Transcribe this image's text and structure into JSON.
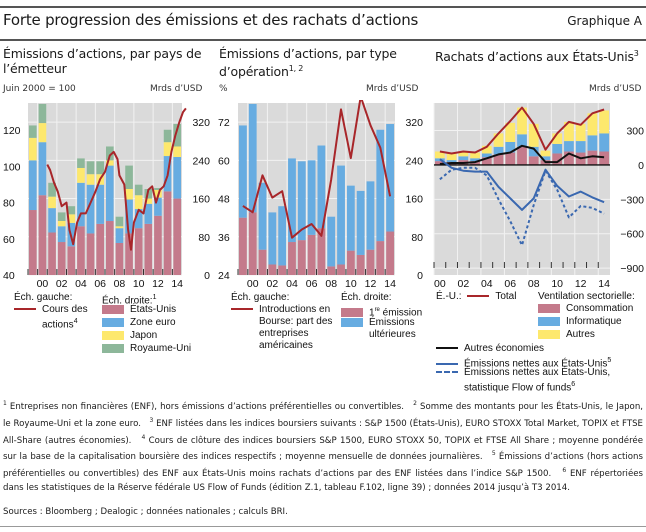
{
  "header": {
    "title": "Forte progression des émissions et des rachats d’actions",
    "label": "Graphique A"
  },
  "colors": {
    "pink": "#c47a8b",
    "blue": "#67ace1",
    "yellow": "#fde86d",
    "green": "#8db79a",
    "red": "#a8262a",
    "navy": "#3a68b0",
    "black": "#111111",
    "plot_bg": "#dadada",
    "grid": "#f2f2f2"
  },
  "panels": [
    {
      "title": "Émissions d’actions, par pays de l’émetteur",
      "sup": "",
      "unit_left": "Juin 2000 = 100",
      "unit_right": "Mrds d’USD"
    },
    {
      "title": "Émissions d’actions, par type d’opération",
      "sup": "1, 2",
      "unit_left": "%",
      "unit_right": "Mrds d’USD"
    },
    {
      "title": "Rachats d’actions aux États-Unis",
      "sup": "3",
      "unit_left": "",
      "unit_right": "Mrds d’USD"
    }
  ],
  "legends": {
    "p1": {
      "left_head": "Éch. gauche:",
      "line": "Cours des",
      "line2": "actions",
      "line_sup": "4",
      "right_head": "Éch. droite:",
      "right_sup": "1",
      "items": [
        "États-Unis",
        "Zone euro",
        "Japon",
        "Royaume-Uni"
      ]
    },
    "p2": {
      "left_head": "Éch. gauche:",
      "line_lines": [
        "Introductions en",
        "Bourse: part des",
        "entreprises",
        "américaines"
      ],
      "right_head": "Éch. droite:",
      "item1_sup": "re",
      "item1_pre": "1",
      "item1": " émission",
      "item2_lines": [
        "Émissions",
        "ultérieures"
      ]
    },
    "p3": {
      "us_label": "É.-U.:",
      "total": "Total",
      "sector_head": "Ventilation sectorielle:",
      "sectors": [
        "Consommation",
        "Informatique",
        "Autres"
      ],
      "other": "Autres économies",
      "net": "Émissions nettes aux États-Unis",
      "net_sup": "5",
      "fof1": "Émissions nettes aux États-Unis,",
      "fof2": "statistique Flow of funds",
      "fof_sup": "6"
    }
  },
  "footnotes": [
    {
      "n": "1",
      "t": "Entreprises non financières (ENF), hors émissions d’actions préférentielles ou convertibles."
    },
    {
      "n": "2",
      "t": "Somme des montants pour les États-Unis, le Japon, le Royaume-Uni et la zone euro."
    },
    {
      "n": "3",
      "t": "ENF listées dans les indices boursiers suivants : S&P 1500 (États-Unis), EURO STOXX Total Market, TOPIX et FTSE All-Share (autres économies)."
    },
    {
      "n": "4",
      "t": "Cours de clôture des indices boursiers S&P 1500, EURO STOXX 50, TOPIX et FTSE All Share ; moyenne pondérée sur la base de la capitalisation boursière des indices respectifs ; moyenne mensuelle de données journalières."
    },
    {
      "n": "5",
      "t": "Émissions d’actions (hors actions préférentielles ou convertibles) des ENF aux États-Unis moins rachats d’actions par des ENF listées dans l’indice S&P 1500."
    },
    {
      "n": "6",
      "t": "ENF répertoriées dans les statistiques de la Réserve fédérale US Flow of Funds (édition Z.1, tableau F.102, ligne 39) ; données 2014 jusqu’à T3 2014."
    }
  ],
  "sources": "Sources : Bloomberg ; Dealogic ; données nationales ; calculs BRI.",
  "chart_data": [
    {
      "type": "bar",
      "stacked": true,
      "title": "Émissions d’actions, par pays de l’émetteur",
      "categories": [
        "1999",
        "2000",
        "2001",
        "2002",
        "2003",
        "2004",
        "2005",
        "2006",
        "2007",
        "2008",
        "2009",
        "2010",
        "2011",
        "2012",
        "2013",
        "2014"
      ],
      "xtick_labels": [
        "00",
        "02",
        "04",
        "06",
        "08",
        "10",
        "12",
        "14"
      ],
      "right_axis": {
        "label": "Mrds d’USD",
        "ylim": [
          0,
          360
        ],
        "ticks": [
          0,
          80,
          160,
          240,
          320
        ]
      },
      "left_axis": {
        "label": "Juin 2000 = 100",
        "ylim": [
          40,
          135
        ],
        "ticks": [
          40,
          60,
          80,
          100,
          120
        ]
      },
      "series": [
        {
          "name": "États-Unis",
          "axis": "right",
          "color": "pink",
          "values": [
            136,
            167,
            89,
            69,
            60,
            102,
            87,
            107,
            113,
            67,
            87,
            98,
            107,
            124,
            175,
            160
          ]
        },
        {
          "name": "Zone euro",
          "axis": "right",
          "color": "blue",
          "values": [
            104,
            111,
            51,
            33,
            49,
            91,
            102,
            82,
            116,
            31,
            71,
            40,
            42,
            38,
            74,
            87
          ]
        },
        {
          "name": "Japon",
          "axis": "right",
          "color": "yellow",
          "values": [
            47,
            40,
            24,
            11,
            18,
            31,
            22,
            22,
            11,
            4,
            22,
            29,
            11,
            16,
            29,
            22
          ]
        },
        {
          "name": "Royaume-Uni",
          "axis": "right",
          "color": "green",
          "values": [
            26,
            40,
            29,
            18,
            17,
            20,
            27,
            27,
            29,
            20,
            49,
            22,
            20,
            4,
            26,
            47
          ]
        }
      ],
      "line": {
        "name": "Cours des actions",
        "axis": "left",
        "color": "red",
        "x": [
          2000.5,
          2000.8,
          2001.2,
          2001.6,
          2002.0,
          2002.5,
          2002.8,
          2003.2,
          2003.6,
          2004.0,
          2004.5,
          2005.0,
          2005.5,
          2006.0,
          2006.5,
          2007.0,
          2007.4,
          2007.8,
          2008.0,
          2008.5,
          2008.9,
          2009.2,
          2009.5,
          2010.0,
          2010.5,
          2011.0,
          2011.4,
          2011.8,
          2012.2,
          2012.6,
          2013.0,
          2013.4,
          2013.8,
          2014.2,
          2014.6,
          2014.9
        ],
        "y": [
          101,
          98,
          91,
          86,
          78,
          80,
          65,
          57,
          69,
          74,
          74,
          80,
          86,
          93,
          97,
          106,
          108,
          104,
          95,
          90,
          65,
          54,
          69,
          76,
          74,
          87,
          89,
          80,
          87,
          89,
          95,
          108,
          117,
          124,
          130,
          132
        ]
      }
    },
    {
      "type": "bar",
      "stacked": true,
      "title": "Émissions d’actions, par type d’opération",
      "categories": [
        "1999",
        "2000",
        "2001",
        "2002",
        "2003",
        "2004",
        "2005",
        "2006",
        "2007",
        "2008",
        "2009",
        "2010",
        "2011",
        "2012",
        "2013",
        "2014"
      ],
      "xtick_labels": [
        "00",
        "02",
        "04",
        "06",
        "08",
        "10",
        "12",
        "14"
      ],
      "right_axis": {
        "label": "Mrds d’USD",
        "ylim": [
          0,
          360
        ],
        "ticks": [
          0,
          80,
          160,
          240,
          320
        ]
      },
      "left_axis": {
        "label": "%",
        "ylim": [
          24,
          78
        ],
        "ticks": [
          24,
          36,
          48,
          60,
          72
        ]
      },
      "series": [
        {
          "name": "1re émission",
          "axis": "right",
          "color": "pink",
          "values": [
            120,
            131,
            53,
            22,
            20,
            69,
            73,
            84,
            98,
            18,
            22,
            51,
            42,
            53,
            71,
            91
          ]
        },
        {
          "name": "Émissions ultérieures",
          "axis": "right",
          "color": "blue",
          "values": [
            193,
            227,
            140,
            109,
            124,
            175,
            165,
            156,
            173,
            104,
            207,
            136,
            134,
            143,
            233,
            225
          ]
        }
      ],
      "line": {
        "name": "Introductions en Bourse: part des entreprises américaines",
        "axis": "left",
        "color": "red",
        "x": [
          1999,
          2000,
          2001,
          2002,
          2003,
          2004,
          2005,
          2006,
          2007,
          2008,
          2009,
          2010,
          2011,
          2012,
          2013,
          2014
        ],
        "y": [
          45.7,
          43.7,
          55.3,
          48.3,
          50.3,
          35.7,
          38.3,
          40.0,
          36.3,
          54.0,
          76.0,
          60.7,
          80.0,
          71.0,
          64.0,
          48.7
        ]
      }
    },
    {
      "type": "bar",
      "stacked": true,
      "title": "Rachats d’actions aux États-Unis",
      "categories": [
        "2000",
        "2001",
        "2002",
        "2003",
        "2004",
        "2005",
        "2006",
        "2007",
        "2008",
        "2009",
        "2010",
        "2011",
        "2012",
        "2013",
        "2014"
      ],
      "xtick_labels": [
        "00",
        "02",
        "04",
        "06",
        "08",
        "10",
        "12",
        "14"
      ],
      "right_axis": {
        "label": "Mrds d’USD",
        "ylim": [
          -960,
          540
        ],
        "ticks": [
          -900,
          -600,
          -300,
          0,
          300
        ]
      },
      "series": [
        {
          "name": "Consommation",
          "color": "pink",
          "values": [
            33,
            25,
            42,
            33,
            67,
            92,
            108,
            158,
            75,
            42,
            100,
            117,
            108,
            125,
            117
          ]
        },
        {
          "name": "Informatique",
          "color": "blue",
          "values": [
            25,
            17,
            33,
            25,
            33,
            66,
            92,
            109,
            83,
            33,
            83,
            91,
            100,
            133,
            158
          ]
        },
        {
          "name": "Autres",
          "color": "yellow",
          "values": [
            59,
            66,
            42,
            50,
            67,
            117,
            167,
            233,
            200,
            50,
            92,
            167,
            150,
            192,
            200
          ]
        }
      ],
      "lines": [
        {
          "name": "Total",
          "color": "red",
          "style": "solid",
          "values": [
            117,
            100,
            117,
            108,
            158,
            275,
            383,
            500,
            358,
            133,
            275,
            375,
            350,
            450,
            483
          ]
        },
        {
          "name": "Autres économies",
          "color": "black",
          "style": "solid",
          "values": [
            8,
            17,
            17,
            25,
            58,
            92,
            108,
            167,
            142,
            25,
            25,
            100,
            58,
            75,
            67
          ]
        },
        {
          "name": "Émissions nettes aux États-Unis",
          "color": "navy",
          "style": "solid",
          "values": [
            50,
            -25,
            -50,
            -58,
            -58,
            -192,
            -292,
            -392,
            -292,
            -42,
            -183,
            -275,
            -233,
            -283,
            -325
          ]
        },
        {
          "name": "Émissions nettes aux États-Unis, statistique Flow of funds",
          "color": "navy",
          "style": "dashed",
          "values": [
            -125,
            -42,
            -25,
            -25,
            -92,
            -300,
            -492,
            -700,
            -350,
            -50,
            -217,
            -458,
            -358,
            -375,
            -425
          ]
        }
      ]
    }
  ]
}
